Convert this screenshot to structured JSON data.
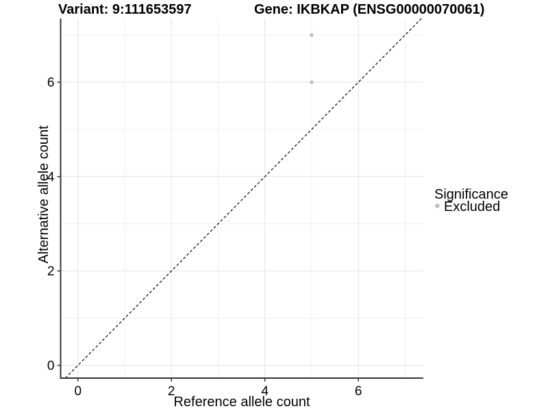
{
  "chart_data": {
    "type": "scatter",
    "title_left": "Variant: 9:111653597",
    "title_right": "Gene: IKBKAP (ENSG00000070061)",
    "xlabel": "Reference allele count",
    "ylabel": "Alternative allele count",
    "xlim": [
      -0.37,
      7.39
    ],
    "ylim": [
      -0.27,
      7.35
    ],
    "xticks": [
      0,
      2,
      4,
      6
    ],
    "yticks": [
      0,
      2,
      4,
      6
    ],
    "xminor": [
      1,
      3,
      5,
      7
    ],
    "yminor": [
      1,
      3,
      5,
      7
    ],
    "grid": true,
    "series": [
      {
        "name": "Excluded",
        "color": "#bdbdbd",
        "points": [
          {
            "x": 5,
            "y": 7
          },
          {
            "x": 5,
            "y": 6
          }
        ]
      }
    ],
    "reference_line": {
      "type": "identity",
      "equation": "y = x",
      "style": "dashed",
      "color": "#000000"
    },
    "legend": {
      "title": "Significance",
      "position": "right",
      "items": [
        {
          "label": "Excluded",
          "color": "#bdbdbd"
        }
      ]
    },
    "colors": {
      "background": "#ffffff",
      "grid_major": "#e3e3e3",
      "grid_minor": "#efefef",
      "axis": "#333333",
      "text": "#000000"
    }
  }
}
